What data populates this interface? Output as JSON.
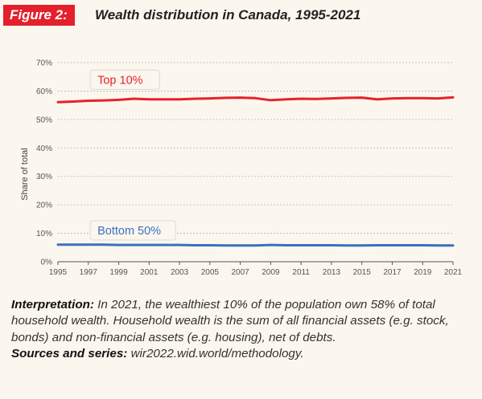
{
  "header": {
    "figure_label": "Figure 2:",
    "title": "Wealth distribution in Canada, 1995-2021"
  },
  "caption": {
    "interpretation_label": "Interpretation:",
    "interpretation_text": " In 2021, the wealthiest 10% of the population own 58% of total household wealth. Household wealth is the sum of all financial assets (e.g. stock, bonds) and non-financial assets (e.g. housing), net of debts.",
    "sources_label": "Sources and series:",
    "sources_text": " wir2022.wid.world/methodology."
  },
  "chart_data": {
    "type": "line",
    "title": "",
    "xlabel": "",
    "ylabel": "Share of total",
    "xlim": [
      1995,
      2021
    ],
    "ylim": [
      0,
      0.7
    ],
    "x_ticks": [
      1995,
      1997,
      1999,
      2001,
      2003,
      2005,
      2007,
      2009,
      2011,
      2013,
      2015,
      2017,
      2019,
      2021
    ],
    "y_ticks": [
      0,
      0.1,
      0.2,
      0.3,
      0.4,
      0.5,
      0.6,
      0.7
    ],
    "y_tick_labels": [
      "0%",
      "10%",
      "20%",
      "30%",
      "40%",
      "50%",
      "60%",
      "70%"
    ],
    "grid": true,
    "legend": "inline labels",
    "x": [
      1995,
      1996,
      1997,
      1998,
      1999,
      2000,
      2001,
      2002,
      2003,
      2004,
      2005,
      2006,
      2007,
      2008,
      2009,
      2010,
      2011,
      2012,
      2013,
      2014,
      2015,
      2016,
      2017,
      2018,
      2019,
      2020,
      2021
    ],
    "series": [
      {
        "name": "Top 10%",
        "color": "#e8202a",
        "values": [
          0.561,
          0.563,
          0.566,
          0.567,
          0.569,
          0.573,
          0.571,
          0.571,
          0.571,
          0.573,
          0.574,
          0.576,
          0.577,
          0.575,
          0.568,
          0.571,
          0.573,
          0.572,
          0.574,
          0.576,
          0.577,
          0.571,
          0.574,
          0.575,
          0.575,
          0.574,
          0.578
        ]
      },
      {
        "name": "Bottom 50%",
        "color": "#3c6fc1",
        "values": [
          0.06,
          0.06,
          0.06,
          0.06,
          0.059,
          0.059,
          0.059,
          0.059,
          0.059,
          0.058,
          0.058,
          0.057,
          0.057,
          0.057,
          0.059,
          0.058,
          0.058,
          0.058,
          0.058,
          0.057,
          0.057,
          0.058,
          0.058,
          0.058,
          0.058,
          0.057,
          0.057
        ]
      }
    ]
  }
}
